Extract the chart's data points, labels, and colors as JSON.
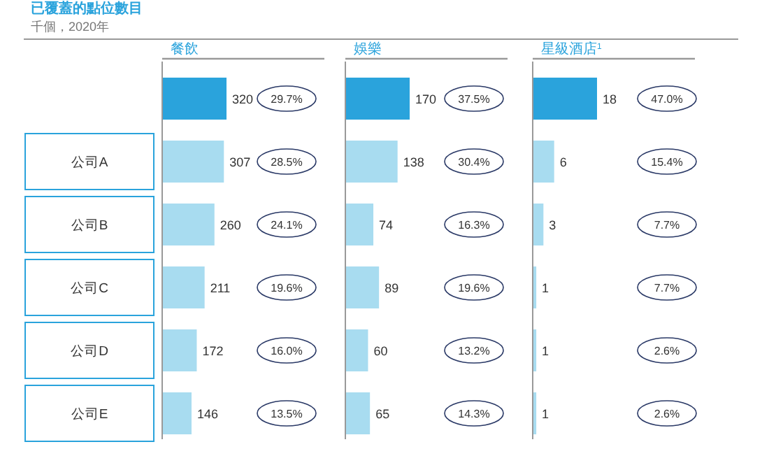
{
  "chart_data": [
    {
      "type": "bar",
      "orientation": "horizontal",
      "title": "已覆蓋的點位數目",
      "subtitle": "千個，2020年",
      "xlabel": "餐飲",
      "categories": [
        null,
        "公司A",
        "公司B",
        "公司C",
        "公司D",
        "公司E"
      ],
      "values": [
        320,
        307,
        260,
        211,
        172,
        146
      ],
      "colors": [
        "#2aa3dc",
        "#a8dcf0",
        "#a8dcf0",
        "#a8dcf0",
        "#a8dcf0",
        "#a8dcf0"
      ],
      "data_labels": true,
      "annotations": [
        "29.7%",
        "28.5%",
        "24.1%",
        "19.6%",
        "16.0%",
        "13.5%"
      ]
    },
    {
      "type": "bar",
      "orientation": "horizontal",
      "xlabel": "娛樂",
      "values": [
        170,
        138,
        74,
        89,
        60,
        65
      ],
      "colors": [
        "#2aa3dc",
        "#a8dcf0",
        "#a8dcf0",
        "#a8dcf0",
        "#a8dcf0",
        "#a8dcf0"
      ],
      "data_labels": true,
      "annotations": [
        "37.5%",
        "30.4%",
        "16.3%",
        "19.6%",
        "13.2%",
        "14.3%"
      ]
    },
    {
      "type": "bar",
      "orientation": "horizontal",
      "xlabel": "星級酒店$^{1}$",
      "values": [
        18,
        6,
        3,
        1,
        1,
        1
      ],
      "colors": [
        "#2aa3dc",
        "#a8dcf0",
        "#a8dcf0",
        "#a8dcf0",
        "#a8dcf0",
        "#a8dcf0"
      ],
      "data_labels": true,
      "annotations": [
        "47.0%",
        "15.4%",
        "7.7%",
        "7.7%",
        "2.6%",
        "2.6%"
      ]
    }
  ]
}
